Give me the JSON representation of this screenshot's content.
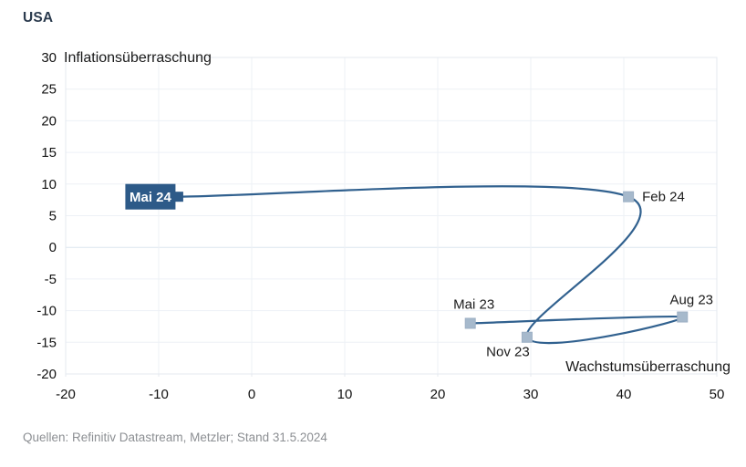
{
  "header": {
    "title": "USA"
  },
  "footer": {
    "source": "Quellen: Refinitiv Datastream, Metzler; Stand 31.5.2024"
  },
  "chart_data": {
    "type": "scatter",
    "title": "USA",
    "xlabel": "Wachstumsüberraschung",
    "ylabel": "Inflationsüberraschung",
    "xlim": [
      -20,
      50
    ],
    "ylim": [
      -20,
      30
    ],
    "x_ticks": [
      -20,
      -10,
      0,
      10,
      20,
      30,
      40,
      50
    ],
    "y_ticks": [
      30,
      25,
      20,
      15,
      10,
      5,
      0,
      -5,
      -10,
      -15,
      -20
    ],
    "grid": true,
    "legend": "none",
    "curve": "catmull-rom-spline-through-points-in-time-order",
    "colors": {
      "line": "#31618f",
      "marker_light_fill": "#a6b9cc",
      "marker_light_stroke": "#9db0c4",
      "marker_dark": "#2d5a88",
      "label_box_bg": "#2d5a88",
      "label_box_text": "#ffffff",
      "grid_minor": "#edf1f6",
      "grid_zero": "#dbe5ef",
      "plot_border": "#e4e9ef"
    },
    "points": [
      {
        "label": "Mai 23",
        "x": 23.5,
        "y": -12.0,
        "marker": "light",
        "label_pos": "above"
      },
      {
        "label": "Aug 23",
        "x": 46.3,
        "y": -11.0,
        "marker": "light",
        "label_pos": "above-right"
      },
      {
        "label": "Nov 23",
        "x": 29.6,
        "y": -14.2,
        "marker": "light",
        "label_pos": "below-left"
      },
      {
        "label": "Feb 24",
        "x": 40.5,
        "y": 8.0,
        "marker": "light",
        "label_pos": "right"
      },
      {
        "label": "Mai 24",
        "x": -7.9,
        "y": 8.0,
        "marker": "dark",
        "label_pos": "left-boxed"
      }
    ]
  }
}
